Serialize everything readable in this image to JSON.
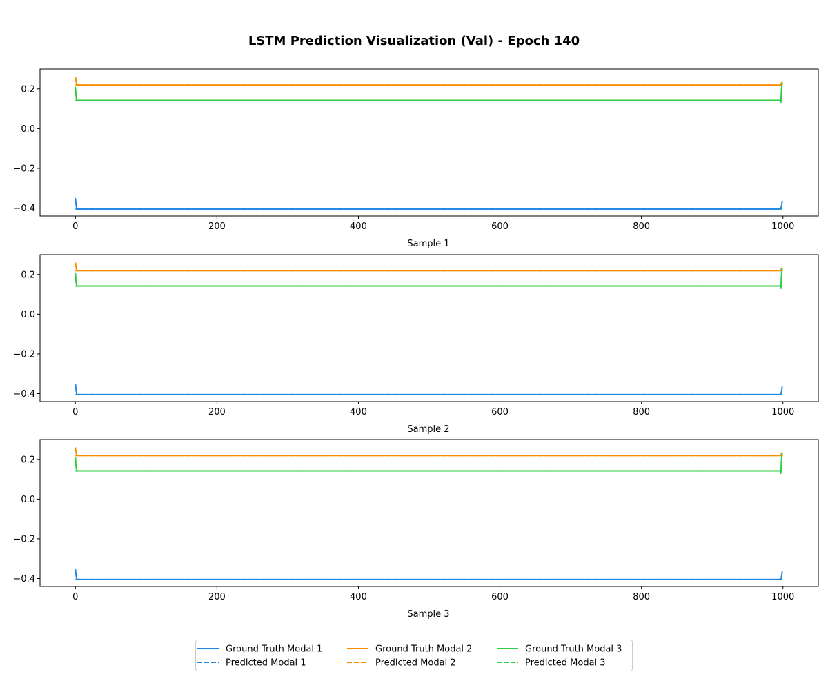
{
  "figure": {
    "title": "LSTM Prediction Visualization (Val) - Epoch 140"
  },
  "colors": {
    "modal_1": "#1e88e5",
    "modal_2": "#fb8c00",
    "modal_3": "#2ecc40"
  },
  "chart_data": [
    {
      "type": "line",
      "subplot_label": "Sample 1",
      "xlim": [
        -50,
        1050
      ],
      "ylim": [
        -0.44,
        0.3
      ],
      "x_ticks": [
        0,
        200,
        400,
        600,
        800,
        1000
      ],
      "y_ticks": [
        -0.4,
        -0.2,
        0.0,
        0.2
      ],
      "y_tick_labels": [
        "−0.4",
        "−0.2",
        "0.0",
        "0.2"
      ],
      "series": [
        {
          "name": "Ground Truth Modal 1",
          "style": "solid",
          "color": "#1e88e5",
          "x": [
            0,
            1,
            2,
            3,
            996,
            997,
            998,
            999
          ],
          "y": [
            -0.35,
            -0.385,
            -0.403,
            -0.405,
            -0.405,
            -0.403,
            -0.39,
            -0.365
          ]
        },
        {
          "name": "Predicted Modal 1",
          "style": "dashed",
          "color": "#1e88e5",
          "x": [
            0,
            999
          ],
          "y": [
            -0.405,
            -0.405
          ]
        },
        {
          "name": "Ground Truth Modal 2",
          "style": "solid",
          "color": "#fb8c00",
          "x": [
            0,
            1,
            2,
            3,
            996,
            997,
            998,
            999
          ],
          "y": [
            0.26,
            0.235,
            0.22,
            0.219,
            0.219,
            0.22,
            0.23,
            0.235
          ]
        },
        {
          "name": "Predicted Modal 2",
          "style": "dashed",
          "color": "#fb8c00",
          "x": [
            0,
            999
          ],
          "y": [
            0.219,
            0.219
          ]
        },
        {
          "name": "Ground Truth Modal 3",
          "style": "solid",
          "color": "#2ecc40",
          "x": [
            0,
            1,
            2,
            3,
            996,
            997,
            998,
            999
          ],
          "y": [
            0.21,
            0.16,
            0.143,
            0.142,
            0.142,
            0.13,
            0.2,
            0.23
          ]
        },
        {
          "name": "Predicted Modal 3",
          "style": "dashed",
          "color": "#2ecc40",
          "x": [
            0,
            999
          ],
          "y": [
            0.142,
            0.142
          ]
        }
      ]
    },
    {
      "type": "line",
      "subplot_label": "Sample 2",
      "xlim": [
        -50,
        1050
      ],
      "ylim": [
        -0.44,
        0.3
      ],
      "x_ticks": [
        0,
        200,
        400,
        600,
        800,
        1000
      ],
      "y_ticks": [
        -0.4,
        -0.2,
        0.0,
        0.2
      ],
      "y_tick_labels": [
        "−0.4",
        "−0.2",
        "0.0",
        "0.2"
      ],
      "series": [
        {
          "name": "Ground Truth Modal 1",
          "style": "solid",
          "color": "#1e88e5",
          "x": [
            0,
            1,
            2,
            3,
            996,
            997,
            998,
            999
          ],
          "y": [
            -0.35,
            -0.385,
            -0.403,
            -0.405,
            -0.405,
            -0.403,
            -0.39,
            -0.365
          ]
        },
        {
          "name": "Predicted Modal 1",
          "style": "dashed",
          "color": "#1e88e5",
          "x": [
            0,
            999
          ],
          "y": [
            -0.405,
            -0.405
          ]
        },
        {
          "name": "Ground Truth Modal 2",
          "style": "solid",
          "color": "#fb8c00",
          "x": [
            0,
            1,
            2,
            3,
            996,
            997,
            998,
            999
          ],
          "y": [
            0.26,
            0.235,
            0.22,
            0.219,
            0.219,
            0.22,
            0.23,
            0.235
          ]
        },
        {
          "name": "Predicted Modal 2",
          "style": "dashed",
          "color": "#fb8c00",
          "x": [
            0,
            999
          ],
          "y": [
            0.219,
            0.219
          ]
        },
        {
          "name": "Ground Truth Modal 3",
          "style": "solid",
          "color": "#2ecc40",
          "x": [
            0,
            1,
            2,
            3,
            996,
            997,
            998,
            999
          ],
          "y": [
            0.21,
            0.16,
            0.143,
            0.142,
            0.142,
            0.13,
            0.2,
            0.23
          ]
        },
        {
          "name": "Predicted Modal 3",
          "style": "dashed",
          "color": "#2ecc40",
          "x": [
            0,
            999
          ],
          "y": [
            0.142,
            0.142
          ]
        }
      ]
    },
    {
      "type": "line",
      "subplot_label": "Sample 3",
      "xlim": [
        -50,
        1050
      ],
      "ylim": [
        -0.44,
        0.3
      ],
      "x_ticks": [
        0,
        200,
        400,
        600,
        800,
        1000
      ],
      "y_ticks": [
        -0.4,
        -0.2,
        0.0,
        0.2
      ],
      "y_tick_labels": [
        "−0.4",
        "−0.2",
        "0.0",
        "0.2"
      ],
      "series": [
        {
          "name": "Ground Truth Modal 1",
          "style": "solid",
          "color": "#1e88e5",
          "x": [
            0,
            1,
            2,
            3,
            996,
            997,
            998,
            999
          ],
          "y": [
            -0.35,
            -0.385,
            -0.403,
            -0.405,
            -0.405,
            -0.403,
            -0.39,
            -0.365
          ]
        },
        {
          "name": "Predicted Modal 1",
          "style": "dashed",
          "color": "#1e88e5",
          "x": [
            0,
            999
          ],
          "y": [
            -0.405,
            -0.405
          ]
        },
        {
          "name": "Ground Truth Modal 2",
          "style": "solid",
          "color": "#fb8c00",
          "x": [
            0,
            1,
            2,
            3,
            996,
            997,
            998,
            999
          ],
          "y": [
            0.26,
            0.235,
            0.22,
            0.219,
            0.219,
            0.22,
            0.23,
            0.235
          ]
        },
        {
          "name": "Predicted Modal 2",
          "style": "dashed",
          "color": "#fb8c00",
          "x": [
            0,
            999
          ],
          "y": [
            0.219,
            0.219
          ]
        },
        {
          "name": "Ground Truth Modal 3",
          "style": "solid",
          "color": "#2ecc40",
          "x": [
            0,
            1,
            2,
            3,
            996,
            997,
            998,
            999
          ],
          "y": [
            0.21,
            0.16,
            0.143,
            0.142,
            0.142,
            0.13,
            0.2,
            0.23
          ]
        },
        {
          "name": "Predicted Modal 3",
          "style": "dashed",
          "color": "#2ecc40",
          "x": [
            0,
            999
          ],
          "y": [
            0.142,
            0.142
          ]
        }
      ]
    }
  ],
  "legend": {
    "placement": "bottom-center",
    "columns": 3,
    "entries": [
      {
        "label": "Ground Truth Modal 1",
        "style": "solid",
        "color": "#1e88e5"
      },
      {
        "label": "Predicted Modal 1",
        "style": "dashed",
        "color": "#1e88e5"
      },
      {
        "label": "Ground Truth Modal 2",
        "style": "solid",
        "color": "#fb8c00"
      },
      {
        "label": "Predicted Modal 2",
        "style": "dashed",
        "color": "#fb8c00"
      },
      {
        "label": "Ground Truth Modal 3",
        "style": "solid",
        "color": "#2ecc40"
      },
      {
        "label": "Predicted Modal 3",
        "style": "dashed",
        "color": "#2ecc40"
      }
    ]
  }
}
